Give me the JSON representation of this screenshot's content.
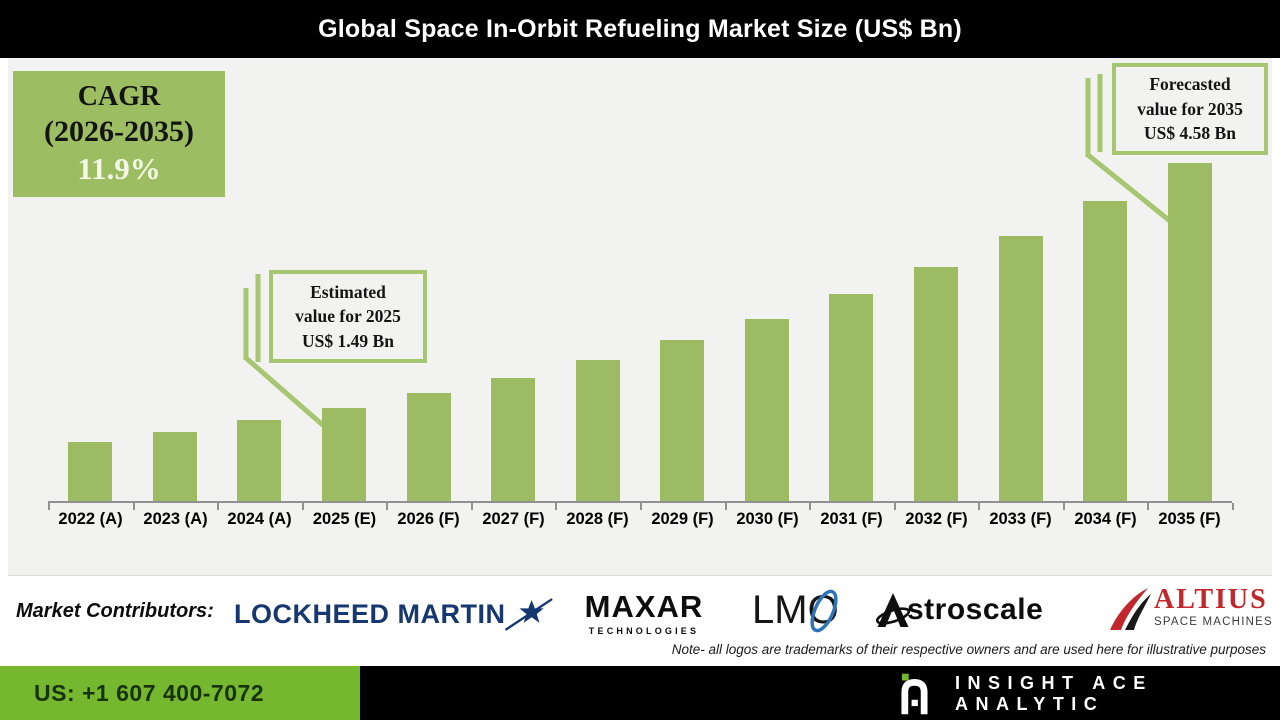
{
  "title": "Global Space In-Orbit Refueling Market Size (US$ Bn)",
  "cagr": {
    "label": "CAGR",
    "period": "(2026-2035)",
    "value": "11.9%"
  },
  "callouts": {
    "estimated": {
      "lines": [
        "Estimated",
        "value for 2025",
        "US$ 1.49 Bn"
      ]
    },
    "forecasted": {
      "lines": [
        "Forecasted",
        "value for 2035",
        "US$ 4.58 Bn"
      ]
    }
  },
  "chart_data": {
    "type": "bar",
    "title": "Global Space In-Orbit Refueling Market Size (US$ Bn)",
    "unit": "US$ Bn",
    "categories": [
      "2022 (A)",
      "2023 (A)",
      "2024 (A)",
      "2025 (E)",
      "2026 (F)",
      "2027 (F)",
      "2028 (F)",
      "2029 (F)",
      "2030 (F)",
      "2031 (F)",
      "2032 (F)",
      "2033 (F)",
      "2034 (F)",
      "2035 (F)"
    ],
    "values": [
      1.06,
      1.19,
      1.33,
      1.49,
      1.67,
      1.87,
      2.09,
      2.34,
      2.61,
      2.93,
      3.27,
      3.66,
      4.1,
      4.58
    ],
    "labeled_points": {
      "2025": 1.49,
      "2035": 4.58
    },
    "cagr_pct": 11.9,
    "cagr_period": "2026-2035",
    "annotations": [
      "Estimated value for 2025 US$ 1.49 Bn",
      "Forecasted value for 2035 US$ 4.58 Bn"
    ],
    "bar_color": "#9CBB62",
    "grid": false,
    "legend": false,
    "xlabel": "",
    "ylabel": ""
  },
  "contributors": {
    "label": "Market Contributors:",
    "logos": [
      {
        "name": "Lockheed Martin",
        "display": "LOCKHEED MARTIN"
      },
      {
        "name": "Maxar Technologies",
        "display": "MAXAR",
        "subtext": "TECHNOLOGIES"
      },
      {
        "name": "LMO",
        "display": "LM",
        "o": "O"
      },
      {
        "name": "Astroscale",
        "display": "stroscale"
      },
      {
        "name": "Altius Space Machines",
        "display": "ALTIUS",
        "subtext": "SPACE MACHINES"
      }
    ]
  },
  "note": "Note- all logos are trademarks of their respective owners and are used here for illustrative purposes",
  "footer": {
    "phone": "US: +1 607 400-7072",
    "brand": "INSIGHT ACE ANALYTIC"
  },
  "colors": {
    "bar_green": "#9CBB62",
    "cagr_green": "#9CBD61",
    "callout_green": "#A6C672",
    "footer_green": "#75B72F",
    "lockheed_navy": "#16376F",
    "altius_red": "#C1272D",
    "lmo_blue": "#2E74B8",
    "chart_bg": "#F2F2F0",
    "title_bg": "#000000"
  }
}
